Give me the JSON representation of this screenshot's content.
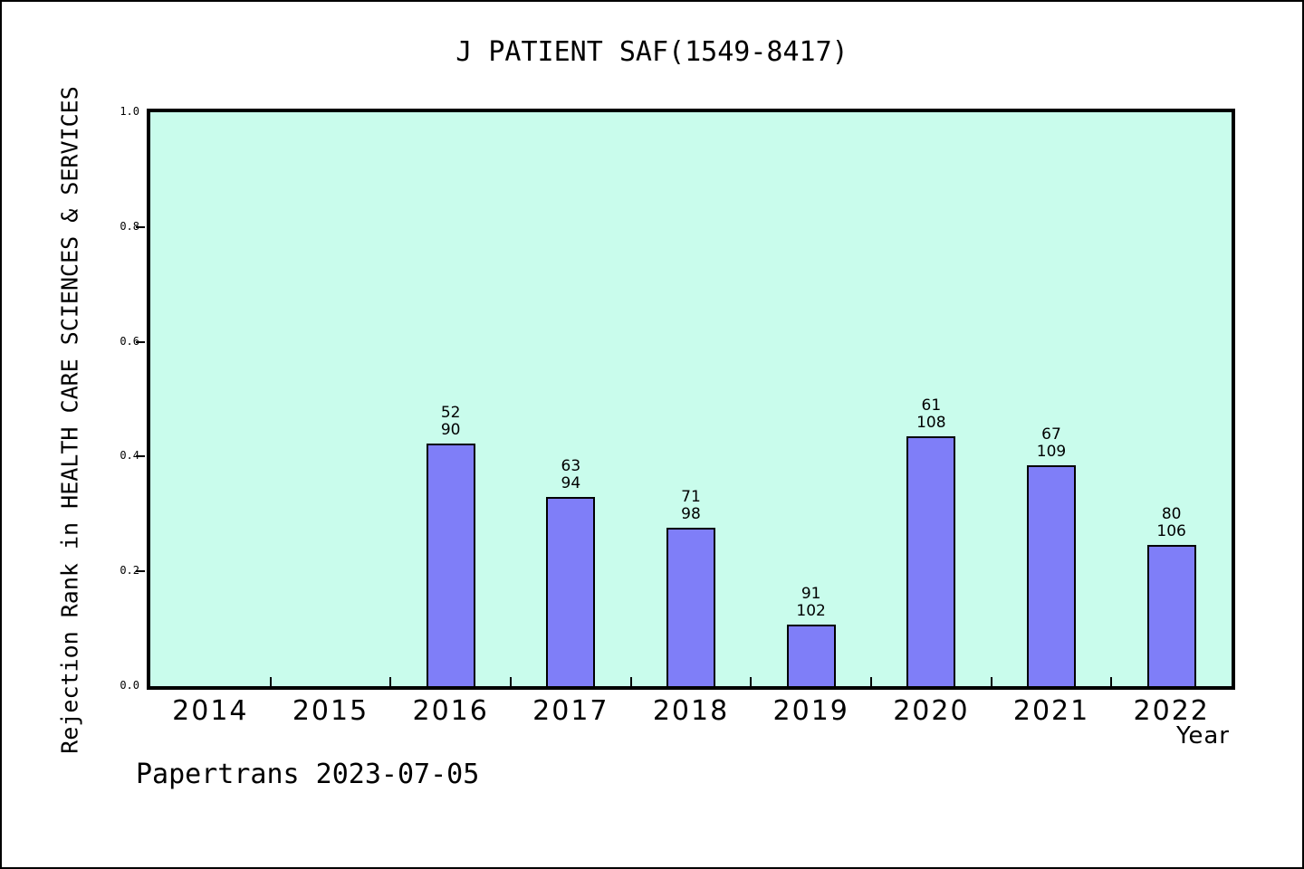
{
  "page": {
    "footer": "Papertrans 2023-07-05"
  },
  "chart_data": {
    "type": "bar",
    "title": "J PATIENT SAF(1549-8417)",
    "xlabel": "Year",
    "ylabel": "Rejection Rank in HEALTH CARE SCIENCES & SERVICES",
    "ylim": [
      0.0,
      1.0
    ],
    "grid": false,
    "legend_position": "none",
    "plot_bg": "#c9fcec",
    "bar_fill": "#7f7ef8",
    "bar_border": "#000000",
    "categories": [
      "2014",
      "2015",
      "2016",
      "2017",
      "2018",
      "2019",
      "2020",
      "2021",
      "2022"
    ],
    "yticks": [
      {
        "label": "0.0",
        "value": 0.0
      },
      {
        "label": "0.2",
        "value": 0.2
      },
      {
        "label": "0.4",
        "value": 0.4
      },
      {
        "label": "0.6",
        "value": 0.6
      },
      {
        "label": "0.8",
        "value": 0.8
      },
      {
        "label": "1.0",
        "value": 1.0
      }
    ],
    "bars": [
      {
        "year": "2014",
        "rank": null,
        "total": null,
        "value": null
      },
      {
        "year": "2015",
        "rank": null,
        "total": null,
        "value": null
      },
      {
        "year": "2016",
        "rank": 52,
        "total": 90,
        "value": 0.4222
      },
      {
        "year": "2017",
        "rank": 63,
        "total": 94,
        "value": 0.3298
      },
      {
        "year": "2018",
        "rank": 71,
        "total": 98,
        "value": 0.2755
      },
      {
        "year": "2019",
        "rank": 91,
        "total": 102,
        "value": 0.1078
      },
      {
        "year": "2020",
        "rank": 61,
        "total": 108,
        "value": 0.4352
      },
      {
        "year": "2021",
        "rank": 67,
        "total": 109,
        "value": 0.3853
      },
      {
        "year": "2022",
        "rank": 80,
        "total": 106,
        "value": 0.2453
      }
    ]
  }
}
